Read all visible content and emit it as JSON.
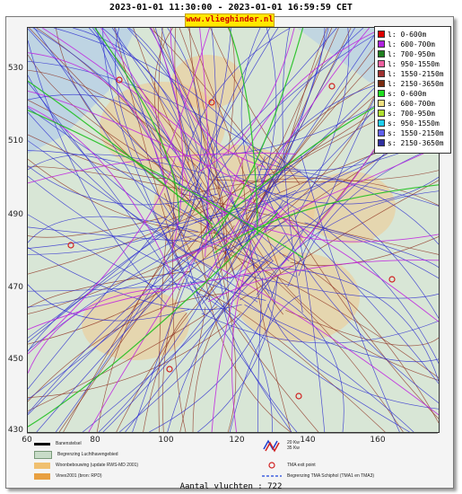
{
  "header": {
    "title": "2023-01-01 11:30:00 - 2023-01-01 16:59:59 CET",
    "site": "www.vlieghinder.nl"
  },
  "map": {
    "y_ticks": [
      "530",
      "510",
      "490",
      "470",
      "450",
      "430"
    ],
    "x_ticks": [
      "60",
      "80",
      "100",
      "120",
      "140",
      "160"
    ],
    "colors": {
      "land": "#d8e6d6",
      "urban": "#f0c890",
      "water": "#b8cfe6",
      "track_blue": "#2a2ad0",
      "track_brown": "#8b2a1a",
      "track_magenta": "#c020e0"
    }
  },
  "legend": {
    "items": [
      {
        "label": "l: 0-600m",
        "color": "#e00000"
      },
      {
        "label": "l: 600-700m",
        "color": "#b020e0"
      },
      {
        "label": "l: 700-950m",
        "color": "#208020"
      },
      {
        "label": "l: 950-1550m",
        "color": "#f060a0"
      },
      {
        "label": "l: 1550-2150m",
        "color": "#a03030"
      },
      {
        "label": "l: 2150-3650m",
        "color": "#7a2a10"
      },
      {
        "label": "s: 0-600m",
        "color": "#20e020"
      },
      {
        "label": "s: 600-700m",
        "color": "#f0e080"
      },
      {
        "label": "s: 700-950m",
        "color": "#b0e030"
      },
      {
        "label": "s: 950-1550m",
        "color": "#20d0f0"
      },
      {
        "label": "s: 1550-2150m",
        "color": "#6060f0"
      },
      {
        "label": "s: 2150-3650m",
        "color": "#3030a0"
      }
    ]
  },
  "bottom_legend": {
    "baanstelsel": "Banenstelsel",
    "begrenzing": "Begrenzing Luchthavengebied",
    "woonbebouwing": "Woonbebouwing (update RWS-MD 2001)",
    "vinex": "Vinex2001 (bron: RPD)",
    "kw20": "20 Kw",
    "kw35": "35 Kw",
    "tma_exit": "TMA exit point",
    "tma_schiphol": "Begrenzing TMA Schiphol  (TMA1 en TMA3)"
  },
  "footer": {
    "count": "Aantal vluchten : 722"
  }
}
